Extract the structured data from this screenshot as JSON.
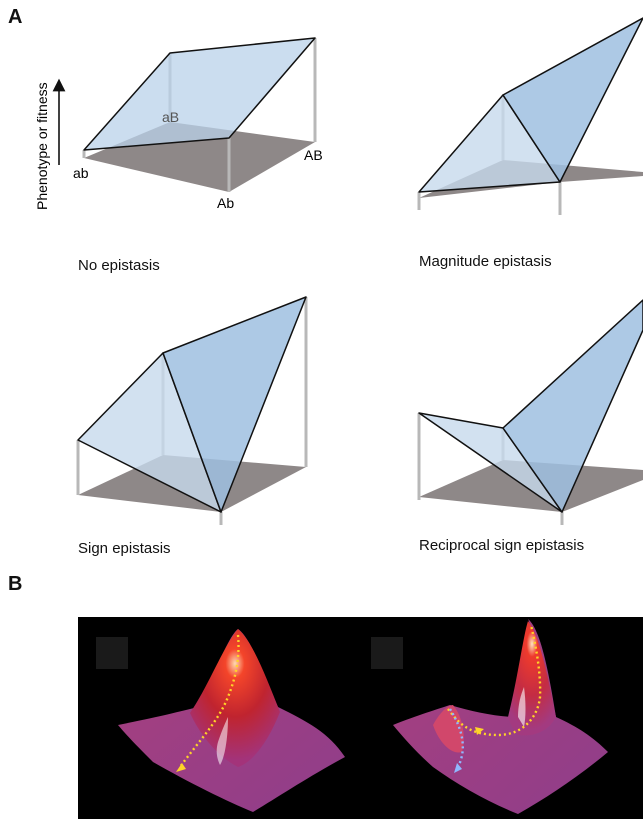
{
  "panels": {
    "a_label": "A",
    "b_label": "B"
  },
  "axis": {
    "y_label": "Phenotype or fitness"
  },
  "corners": {
    "ab": "ab",
    "aB": "aB",
    "Ab": "Ab",
    "AB": "AB"
  },
  "captions": {
    "no_epistasis": "No epistasis",
    "magnitude": "Magnitude epistasis",
    "sign": "Sign epistasis",
    "reciprocal": "Reciprocal sign epistasis"
  },
  "colors": {
    "plane": "#c7d9ec",
    "plane_dark": "#9fbfe0",
    "floor": "#8e8888",
    "pillar": "#b8b8b8",
    "edge": "#111111",
    "peak": "#e8352a",
    "surface": "#b0387a",
    "path_yellow": "#ffd428",
    "path_blue": "#8fb8ff"
  }
}
